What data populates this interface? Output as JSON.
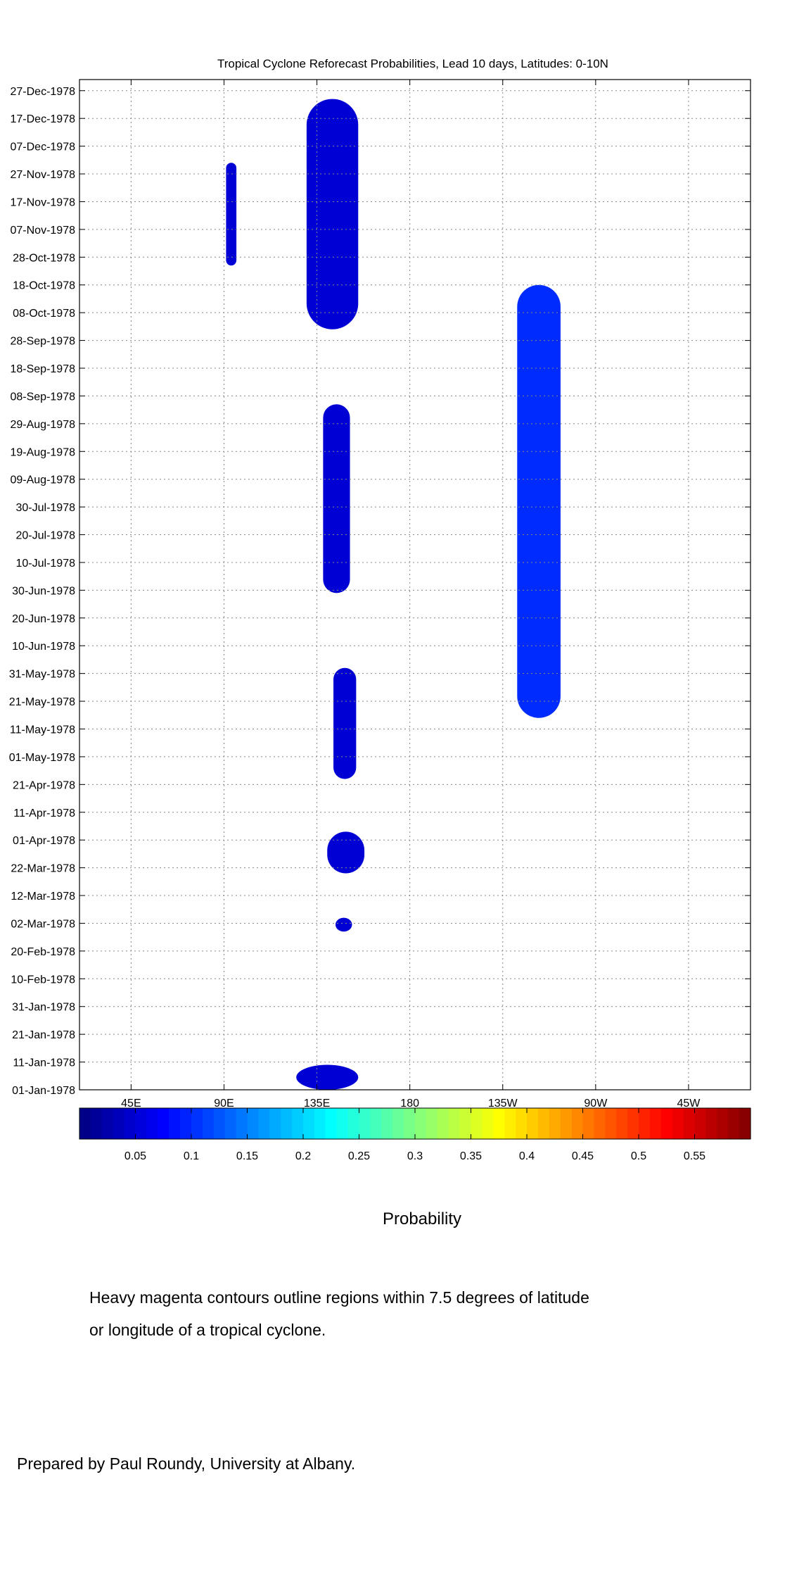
{
  "chart_data": {
    "type": "heatmap",
    "title": "Tropical Cyclone Reforecast Probabilities, Lead 10 days, Latitudes: 0-10N",
    "x_tick_labels": [
      "45E",
      "90E",
      "135E",
      "180",
      "135W",
      "90W",
      "45W"
    ],
    "x_ticks_deg_east": [
      45,
      90,
      135,
      180,
      225,
      270,
      315
    ],
    "xlim_deg_east": [
      20,
      345
    ],
    "y_tick_labels": [
      "01-Jan-1978",
      "11-Jan-1978",
      "21-Jan-1978",
      "31-Jan-1978",
      "10-Feb-1978",
      "20-Feb-1978",
      "02-Mar-1978",
      "12-Mar-1978",
      "22-Mar-1978",
      "01-Apr-1978",
      "11-Apr-1978",
      "21-Apr-1978",
      "01-May-1978",
      "11-May-1978",
      "21-May-1978",
      "31-May-1978",
      "10-Jun-1978",
      "20-Jun-1978",
      "30-Jun-1978",
      "10-Jul-1978",
      "20-Jul-1978",
      "30-Jul-1978",
      "09-Aug-1978",
      "19-Aug-1978",
      "29-Aug-1978",
      "08-Sep-1978",
      "18-Sep-1978",
      "28-Sep-1978",
      "08-Oct-1978",
      "18-Oct-1978",
      "28-Oct-1978",
      "07-Nov-1978",
      "17-Nov-1978",
      "27-Nov-1978",
      "07-Dec-1978",
      "17-Dec-1978",
      "27-Dec-1978"
    ],
    "ylim": [
      "01-Jan-1978",
      "31-Dec-1978"
    ],
    "grid": true,
    "colorbar": {
      "label": "Probability",
      "range": [
        0,
        0.6
      ],
      "tick_labels": [
        "0.05",
        "0.1",
        "0.15",
        "0.2",
        "0.25",
        "0.3",
        "0.35",
        "0.4",
        "0.45",
        "0.5",
        "0.55"
      ],
      "tick_values": [
        0.05,
        0.1,
        0.15,
        0.2,
        0.25,
        0.3,
        0.35,
        0.4,
        0.45,
        0.5,
        0.55
      ],
      "colormap": "jet"
    },
    "probability_regions": [
      {
        "lon_deg_east": [
          91,
          96
        ],
        "date_range": [
          "25-Oct-1978",
          "01-Dec-1978"
        ],
        "approx_value": 0.05
      },
      {
        "lon_deg_east": [
          130,
          155
        ],
        "date_range": [
          "02-Oct-1978",
          "24-Dec-1978"
        ],
        "approx_value": 0.05
      },
      {
        "lon_deg_east": [
          138,
          151
        ],
        "date_range": [
          "29-Jun-1978",
          "05-Sep-1978"
        ],
        "approx_value": 0.05
      },
      {
        "lon_deg_east": [
          143,
          154
        ],
        "date_range": [
          "23-Apr-1978",
          "02-Jun-1978"
        ],
        "approx_value": 0.05
      },
      {
        "lon_deg_east": [
          140,
          158
        ],
        "date_range": [
          "20-Mar-1978",
          "04-Apr-1978"
        ],
        "approx_value": 0.05
      },
      {
        "lon_deg_east": [
          144,
          152
        ],
        "date_range": [
          "27-Feb-1978",
          "04-Mar-1978"
        ],
        "approx_value": 0.05
      },
      {
        "lon_deg_east": [
          125,
          155
        ],
        "date_range": [
          "01-Jan-1978",
          "10-Jan-1978"
        ],
        "approx_value": 0.05
      },
      {
        "lon_deg_east": [
          232,
          253
        ],
        "date_range": [
          "15-May-1978",
          "18-Oct-1978"
        ],
        "approx_value": 0.1
      }
    ],
    "tc_contour_color": "#ff33ff"
  },
  "caption_line_1": "Heavy magenta contours outline regions within 7.5 degrees of latitude",
  "caption_line_2": "or longitude of a tropical cyclone.",
  "credit": "Prepared by Paul Roundy, University at Albany."
}
